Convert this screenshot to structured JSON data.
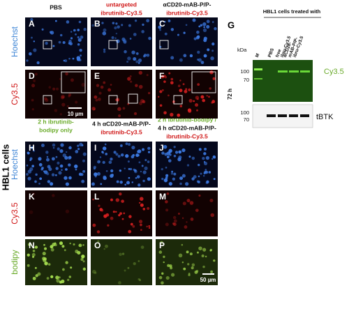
{
  "side_label": "HBL1 cells",
  "top_section": {
    "column_headers": [
      [
        "PBS"
      ],
      [
        "untargeted",
        "ibrutinib-Cy3.5"
      ],
      [
        "αCD20-mAB-P/P-",
        "ibrutinib-Cy3.5"
      ]
    ],
    "row_labels": [
      "Hoechst",
      "Cy3.5"
    ],
    "panels": [
      "A",
      "B",
      "C",
      "D",
      "E",
      "F"
    ],
    "scale_bar": "10 µm"
  },
  "bottom_section": {
    "column_headers": [
      [
        "2 h ibrutinib-",
        "bodipy only"
      ],
      [
        "4 h αCD20-mAB-P/P-",
        "ibrutinib-Cy3.5"
      ],
      [
        "2 h ibrutinib-bodipy /",
        "4 h αCD20-mAB-P/P-",
        "ibrutinib-Cy3.5"
      ]
    ],
    "row_labels": [
      "Hoechst",
      "Cy3.5",
      "bodipy"
    ],
    "panels": [
      "H",
      "I",
      "J",
      "K",
      "L",
      "M",
      "N",
      "O",
      "P"
    ],
    "scale_bar": "50 µm"
  },
  "western_blot": {
    "panel": "G",
    "title": "HBL1 cells treated with",
    "lanes": [
      [
        "M"
      ],
      [
        "PBS"
      ],
      [
        "free",
        "ibru-Cy3.5"
      ],
      [
        "αCD20-",
        "mAB-P/P-",
        "ibru-Cy3.5"
      ]
    ],
    "kda_label": "kDa",
    "time": "72 h",
    "top_markers": [
      "100",
      "70"
    ],
    "top_label": "Cy3.5",
    "bottom_markers": [
      "100",
      "70"
    ],
    "bottom_label": "tBTK"
  }
}
